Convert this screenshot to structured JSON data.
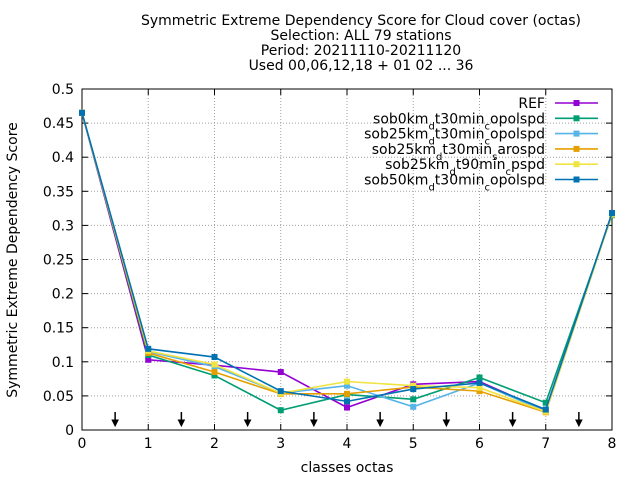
{
  "chart_data": {
    "type": "line",
    "title_lines": [
      "Symmetric Extreme Dependency Score  for Cloud cover (octas)",
      "Selection: ALL      79 stations",
      "Period: 20211110-20211120",
      "Used 00,06,12,18 + 01 02 ... 36"
    ],
    "xlabel": "classes octas",
    "ylabel": "Symmetric Extreme Dependency Score",
    "xlim": [
      0,
      8
    ],
    "ylim": [
      0,
      0.5
    ],
    "x_ticks": [
      "0",
      "1",
      "2",
      "3",
      "4",
      "5",
      "6",
      "7",
      "8"
    ],
    "y_ticks": [
      "0",
      "0.05",
      "0.1",
      "0.15",
      "0.2",
      "0.25",
      "0.3",
      "0.35",
      "0.4",
      "0.45",
      "0.5"
    ],
    "grid": true,
    "legend_position": "top-right",
    "arrow_markers_x": [
      0.5,
      1.5,
      2.5,
      3.5,
      4.5,
      5.5,
      6.5,
      7.5
    ],
    "x": [
      0,
      1,
      2,
      3,
      4,
      5,
      6,
      7,
      8
    ],
    "series": [
      {
        "name": "REF",
        "legend_parts": [
          [
            "REF",
            ""
          ]
        ],
        "color": "#9400d3",
        "marker": "square",
        "values": [
          0.465,
          0.103,
          0.095,
          0.085,
          0.033,
          0.067,
          0.071,
          0.028,
          0.318
        ]
      },
      {
        "name": "sob0km_dt30min_copolspd",
        "legend_parts": [
          [
            "sob0km",
            ""
          ],
          [
            "d",
            "sub"
          ],
          [
            "t30min",
            ""
          ],
          [
            "c",
            "sub"
          ],
          [
            "opolspd",
            ""
          ]
        ],
        "color": "#009e73",
        "marker": "square",
        "values": [
          0.465,
          0.11,
          0.08,
          0.029,
          0.052,
          0.045,
          0.077,
          0.04,
          0.315
        ]
      },
      {
        "name": "sob25km_dt30min_copolspd",
        "legend_parts": [
          [
            "sob25km",
            ""
          ],
          [
            "d",
            "sub"
          ],
          [
            "t30min",
            ""
          ],
          [
            "c",
            "sub"
          ],
          [
            "opolspd",
            ""
          ]
        ],
        "color": "#56b4e9",
        "marker": "square",
        "values": [
          0.465,
          0.115,
          0.093,
          0.054,
          0.065,
          0.034,
          0.069,
          0.027,
          0.316
        ]
      },
      {
        "name": "sob25km_dt30min_sarospd",
        "legend_parts": [
          [
            "sob25km",
            ""
          ],
          [
            "d",
            "sub"
          ],
          [
            "t30min",
            ""
          ],
          [
            "s",
            "sub"
          ],
          [
            "arospd",
            ""
          ]
        ],
        "color": "#e69f00",
        "marker": "square",
        "values": [
          0.465,
          0.113,
          0.085,
          0.053,
          0.053,
          0.063,
          0.057,
          0.026,
          0.317
        ]
      },
      {
        "name": "sob25km_dt90min_cpspd",
        "legend_parts": [
          [
            "sob25km",
            ""
          ],
          [
            "d",
            "sub"
          ],
          [
            "t90min",
            ""
          ],
          [
            "c",
            "sub"
          ],
          [
            "pspd",
            ""
          ]
        ],
        "color": "#f0e442",
        "marker": "square",
        "values": [
          0.465,
          0.116,
          0.096,
          0.054,
          0.071,
          0.065,
          0.062,
          0.027,
          0.316
        ]
      },
      {
        "name": "sob50km_dt30min_copolspd",
        "legend_parts": [
          [
            "sob50km",
            ""
          ],
          [
            "d",
            "sub"
          ],
          [
            "t30min",
            ""
          ],
          [
            "c",
            "sub"
          ],
          [
            "opolspd",
            ""
          ]
        ],
        "color": "#0072b2",
        "marker": "square",
        "values": [
          0.465,
          0.119,
          0.107,
          0.057,
          0.042,
          0.06,
          0.069,
          0.03,
          0.318
        ]
      }
    ]
  }
}
